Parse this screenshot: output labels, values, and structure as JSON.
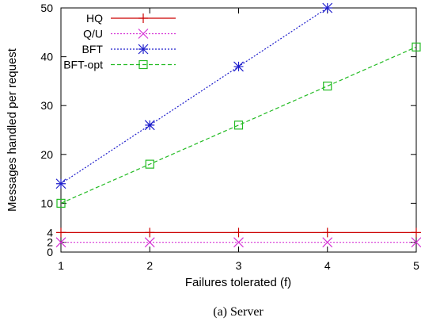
{
  "chart_data": {
    "type": "line",
    "xlabel": "Failures tolerated (f)",
    "ylabel": "Messages handled per request",
    "caption": "(a)  Server",
    "xlim": [
      1,
      5
    ],
    "ylim": [
      0,
      50
    ],
    "x_ticks": [
      "1",
      "2",
      "3",
      "4",
      "5"
    ],
    "y_ticks": [
      "0",
      "2",
      "4",
      "10",
      "20",
      "30",
      "40",
      "50"
    ],
    "grid": false,
    "legend_position": "top-left",
    "series": [
      {
        "name": "HQ",
        "color": "#cc0000",
        "marker": "plus",
        "dash": "solid",
        "x": [
          1,
          2,
          3,
          4,
          5
        ],
        "y": [
          4,
          4,
          4,
          4,
          4
        ]
      },
      {
        "name": "Q/U",
        "color": "#d633d6",
        "marker": "cross",
        "dash": "dotted",
        "x": [
          1,
          2,
          3,
          4,
          5
        ],
        "y": [
          2,
          2,
          2,
          2,
          2
        ]
      },
      {
        "name": "BFT",
        "color": "#1f1fcc",
        "marker": "star",
        "dash": "dotted",
        "x": [
          1,
          2,
          3,
          4
        ],
        "y": [
          14,
          26,
          38,
          50
        ]
      },
      {
        "name": "BFT-opt",
        "color": "#22bb22",
        "marker": "square",
        "dash": "dashed",
        "x": [
          1,
          2,
          3,
          4,
          5
        ],
        "y": [
          10,
          18,
          26,
          34,
          42
        ]
      }
    ]
  }
}
